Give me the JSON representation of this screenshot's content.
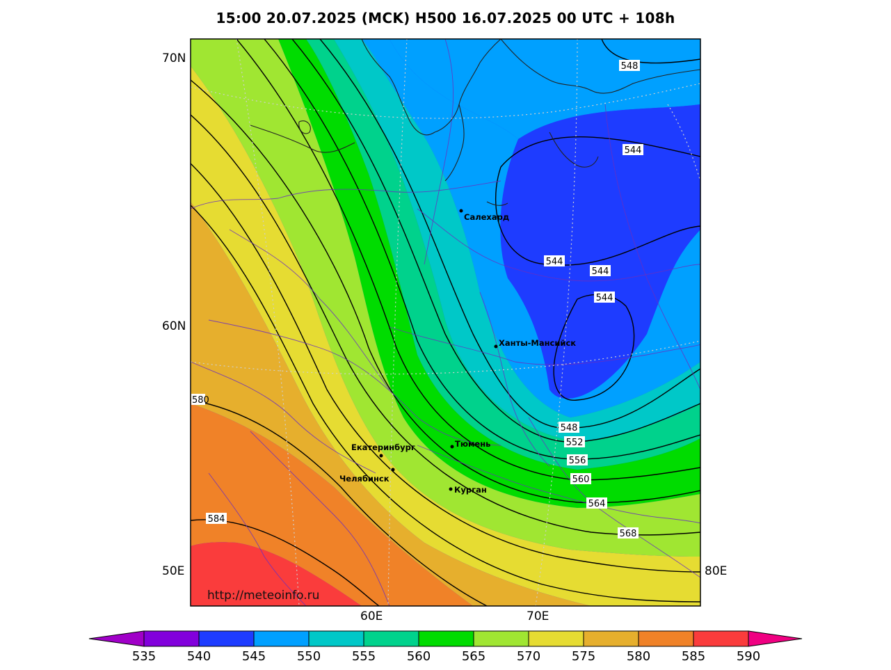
{
  "title": "15:00 20.07.2025 (MCK) H500  16.07.2025 00 UTC + 108h",
  "axes": {
    "lat_labels": [
      "70N",
      "60N"
    ],
    "lon_labels": [
      "60E",
      "70E"
    ],
    "corner_left": "50E",
    "corner_right": "80E"
  },
  "contour_labels": [
    "548",
    "544",
    "544",
    "544",
    "544",
    "548",
    "552",
    "556",
    "560",
    "564",
    "568",
    "580",
    "584"
  ],
  "cities": [
    {
      "name": "Салехард"
    },
    {
      "name": "Ханты-Мансийск"
    },
    {
      "name": "Тюмень"
    },
    {
      "name": "Екатеринбург"
    },
    {
      "name": "Челябинск"
    },
    {
      "name": "Курган"
    }
  ],
  "watermark": "http://meteoinfo.ru",
  "colorbar": {
    "ticks": [
      "535",
      "540",
      "545",
      "550",
      "555",
      "560",
      "565",
      "570",
      "575",
      "580",
      "585",
      "590"
    ],
    "colors": [
      "#8200dc",
      "#1e3cff",
      "#00a0ff",
      "#00c8c8",
      "#00d28c",
      "#00dc00",
      "#a0e632",
      "#e6dc32",
      "#e6af2d",
      "#f08228",
      "#fa3c3c"
    ],
    "under_color": "#a000c8",
    "over_color": "#f00082"
  }
}
